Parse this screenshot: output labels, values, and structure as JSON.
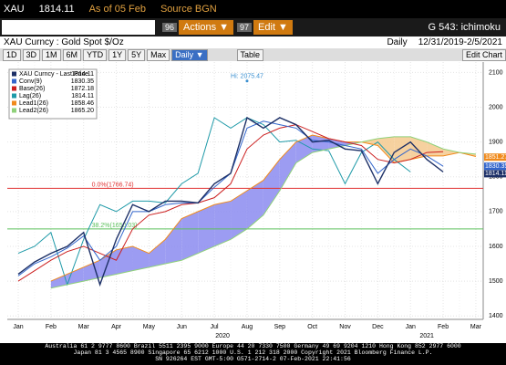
{
  "header": {
    "ticker": "XAU",
    "price": "1814.11",
    "as_of": "As of 05 Feb",
    "source": "Source BGN"
  },
  "toolbar": {
    "actions_num": "96",
    "actions": "Actions ▼",
    "edit_num": "97",
    "edit": "Edit ▼",
    "chart_id": "G 543: ichimoku"
  },
  "subheader": {
    "security": "XAU Curncy : Gold Spot  $/Oz",
    "frequency": "Daily",
    "range": "12/31/2019-2/5/2021"
  },
  "buttons": [
    "1D",
    "3D",
    "1M",
    "6M",
    "YTD",
    "1Y",
    "5Y",
    "Max",
    "Daily ▼",
    "Table",
    "Edit Chart"
  ],
  "chart_data": {
    "type": "line",
    "categories": [
      "Jan",
      null,
      "Feb",
      null,
      "Mar",
      null,
      "Apr",
      null,
      "May",
      null,
      "Jun",
      null,
      "Jul",
      null,
      "Aug",
      null,
      "Sep",
      null,
      "Oct",
      null,
      "Nov",
      null,
      "Dec",
      null,
      "Jan",
      null,
      "Feb",
      null,
      "Mar"
    ],
    "year_labels": [
      "2020",
      "2021"
    ],
    "ylim": [
      1390,
      2130
    ],
    "yticks": [
      1400,
      1500,
      1600,
      1700,
      1800,
      1900,
      2000,
      2100
    ],
    "series": [
      {
        "name": "XAU Curncy - Last Price",
        "legend_value": "1814.11",
        "color": "#1c2f66",
        "values": [
          1520,
          1555,
          1580,
          1600,
          1640,
          1490,
          1620,
          1720,
          1700,
          1730,
          1730,
          1725,
          1780,
          1810,
          1970,
          1940,
          1970,
          1950,
          1900,
          1905,
          1880,
          1875,
          1780,
          1870,
          1900,
          1850,
          1814.11,
          null,
          null
        ]
      },
      {
        "name": "Conv(9)",
        "legend_value": "1830.35",
        "color": "#3366cc",
        "values": [
          1515,
          1550,
          1570,
          1595,
          1630,
          1560,
          1600,
          1700,
          1700,
          1720,
          1725,
          1725,
          1770,
          1810,
          1940,
          1960,
          1950,
          1940,
          1905,
          1900,
          1890,
          1880,
          1810,
          1850,
          1880,
          1860,
          1830.35,
          null,
          null
        ]
      },
      {
        "name": "Base(26)",
        "legend_value": "1872.18",
        "color": "#cc1f1f",
        "values": [
          1500,
          1530,
          1560,
          1585,
          1600,
          1580,
          1560,
          1650,
          1690,
          1700,
          1720,
          1725,
          1740,
          1780,
          1880,
          1920,
          1940,
          1950,
          1930,
          1910,
          1900,
          1890,
          1850,
          1840,
          1850,
          1870,
          1872.18,
          null,
          null
        ]
      },
      {
        "name": "Lag(26)",
        "legend_value": "1814.11",
        "color": "#1f9aa8",
        "values": [
          1580,
          1600,
          1640,
          1490,
          1620,
          1720,
          1700,
          1730,
          1730,
          1725,
          1780,
          1810,
          1970,
          1940,
          1970,
          1950,
          1900,
          1905,
          1880,
          1875,
          1780,
          1870,
          1900,
          1850,
          1814.11,
          null,
          null,
          null,
          null
        ]
      },
      {
        "name": "Lead1(26)",
        "legend_value": "1858.46",
        "color": "#f08a1c",
        "values": [
          null,
          null,
          1500,
          1520,
          1540,
          1560,
          1590,
          1600,
          1580,
          1620,
          1680,
          1700,
          1720,
          1730,
          1760,
          1790,
          1850,
          1900,
          1920,
          1910,
          1900,
          1900,
          1890,
          1840,
          1850,
          1860,
          1860,
          1870,
          1858.46
        ]
      },
      {
        "name": "Lead2(26)",
        "legend_value": "1865.20",
        "color": "#8fd17a",
        "values": [
          null,
          null,
          1480,
          1490,
          1500,
          1510,
          1520,
          1530,
          1540,
          1550,
          1560,
          1580,
          1600,
          1620,
          1650,
          1690,
          1760,
          1840,
          1870,
          1880,
          1890,
          1900,
          1910,
          1915,
          1915,
          1900,
          1880,
          1870,
          1865.2
        ]
      }
    ],
    "cloud_colors": [
      "#8b8bf0",
      "#f5c98e"
    ],
    "levels": [
      {
        "value": 1766.74,
        "label": "0.0%(1766.74)",
        "color": "#e03030"
      },
      {
        "value": 1650.03,
        "label": "38.2%(1650.03)",
        "color": "#5cc05c"
      }
    ],
    "high": {
      "value": 2075.47,
      "label": "Hi: 2075.47",
      "index": 14
    },
    "price_tags": [
      {
        "value": 1851.27,
        "color": "#f08a1c"
      },
      {
        "value": 1830.35,
        "color": "#3366cc"
      },
      {
        "value": 1814.11,
        "color": "#1c2f66"
      }
    ],
    "grid": true
  },
  "footer": [
    "Australia 61 2 9777 8600 Brazil 5511 2395 9000 Europe 44 20 7330 7500 Germany 49 69 9204 1210 Hong Kong 852 2977 6000",
    "Japan 81 3 4565 8900 Singapore 65 6212 1000 U.S. 1 212 318 2000 Copyright 2021 Bloomberg Finance L.P.",
    "SN 926264 EST GMT-5:00 G571-2714-2 07-Feb-2021 22:41:56"
  ]
}
